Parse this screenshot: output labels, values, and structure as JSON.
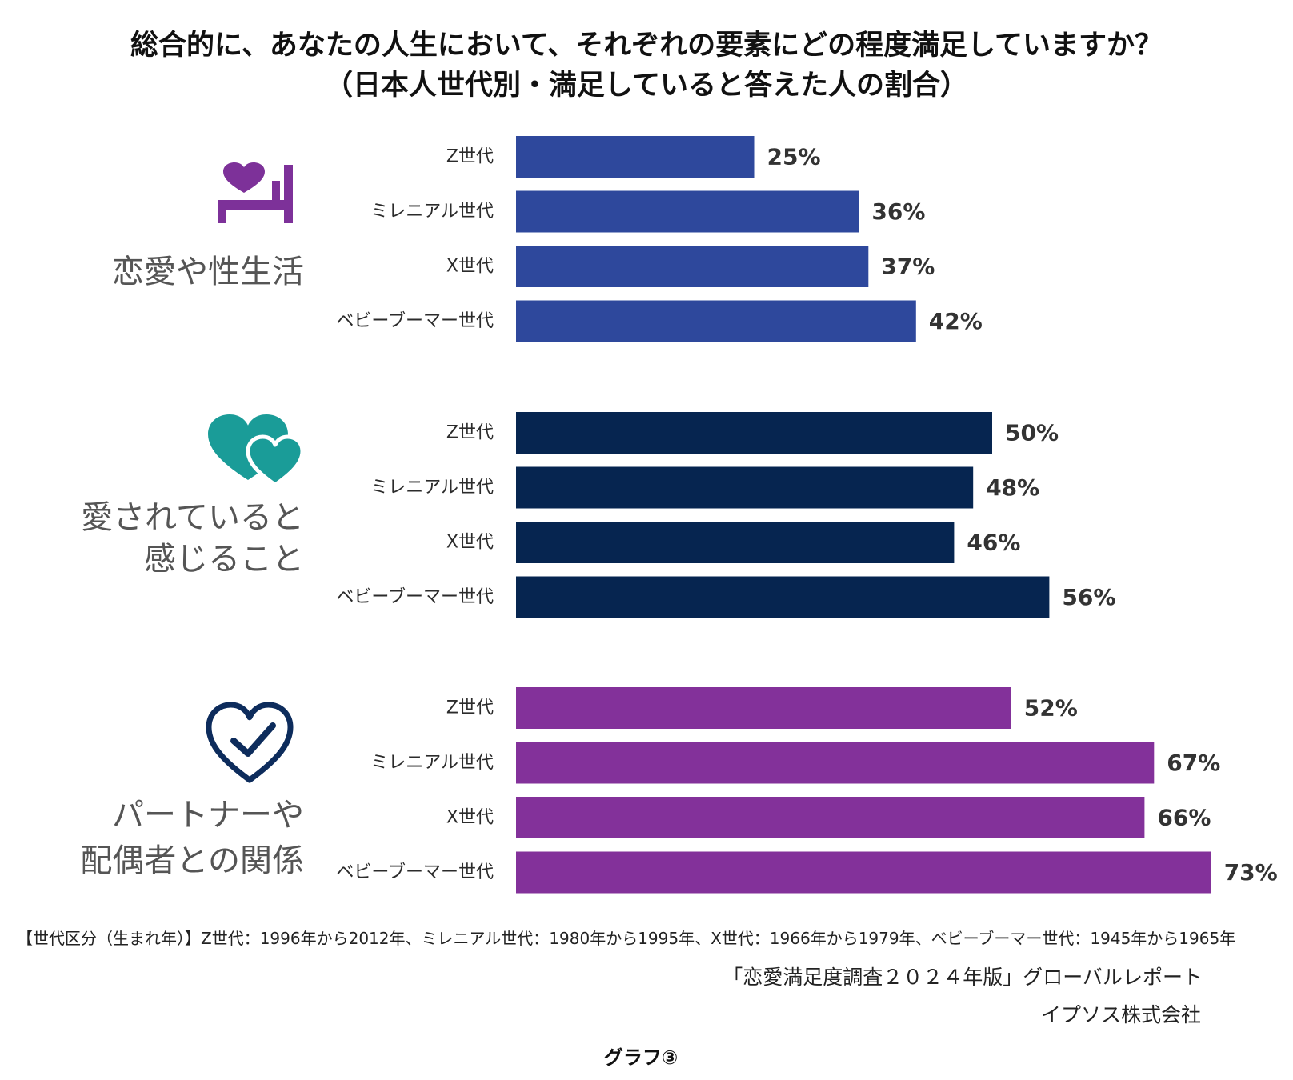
{
  "chart_data": {
    "type": "bar",
    "title": "総合的に、あなたの人生において、それぞれの要素にどの程度満足していますか？",
    "subtitle": "（日本人世代別・満足していると答えた人の割合）",
    "categories": [
      "Z世代",
      "ミレニアル世代",
      "X世代",
      "ベビーブーマー世代"
    ],
    "series": [
      {
        "label_lines": [
          "恋愛や性生活"
        ],
        "icon": "bed-heart-icon",
        "icon_color": "#7D3199",
        "color": "#2E489C",
        "values": [
          25,
          36,
          37,
          42
        ],
        "value_labels": [
          "25%",
          "36%",
          "37%",
          "42%"
        ]
      },
      {
        "label_lines": [
          "愛されていると",
          "感じること"
        ],
        "icon": "two-hearts-icon",
        "icon_color": "#1A9C98",
        "color": "#062550",
        "values": [
          50,
          48,
          46,
          56
        ],
        "value_labels": [
          "50%",
          "48%",
          "46%",
          "56%"
        ]
      },
      {
        "label_lines": [
          "パートナーや",
          "配偶者との関係"
        ],
        "icon": "heart-check-icon",
        "icon_color": "#0D2C5C",
        "color": "#83319A",
        "values": [
          52,
          67,
          66,
          73
        ],
        "value_labels": [
          "52%",
          "67%",
          "66%",
          "73%"
        ]
      }
    ],
    "grid": false
  },
  "notes": {
    "generation_definition": "【世代区分（生まれ年）】Z世代：1996年から2012年、ミレニアル世代：1980年から1995年、X世代：1966年から1979年、ベビーブーマー世代：1945年から1965年",
    "source": "「恋愛満足度調査２０２４年版」グローバルレポート",
    "publisher": "イプソス株式会社",
    "figure_label": "グラフ③"
  }
}
